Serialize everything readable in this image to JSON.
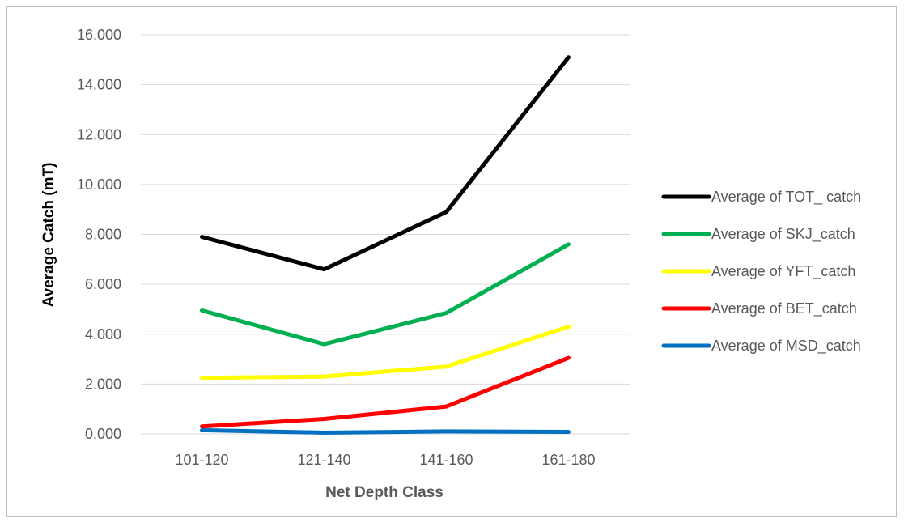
{
  "chart_data": {
    "type": "line",
    "xlabel": "Net Depth Class",
    "ylabel": "Average Catch (mT)",
    "categories": [
      "101-120",
      "121-140",
      "141-160",
      "161-180"
    ],
    "ylim": [
      0,
      16
    ],
    "yticks": [
      "0.000",
      "2.000",
      "4.000",
      "6.000",
      "8.000",
      "10.000",
      "12.000",
      "14.000",
      "16.000"
    ],
    "ytick_values": [
      0,
      2,
      4,
      6,
      8,
      10,
      12,
      14,
      16
    ],
    "grid": "horizontal",
    "legend_position": "right",
    "series": [
      {
        "name": "Average of TOT_ catch",
        "color": "#000000",
        "values": [
          7.9,
          6.6,
          8.9,
          15.1
        ]
      },
      {
        "name": "Average of SKJ_catch",
        "color": "#00b050",
        "values": [
          4.95,
          3.6,
          4.85,
          7.6
        ]
      },
      {
        "name": "Average of YFT_catch",
        "color": "#ffff00",
        "values": [
          2.25,
          2.3,
          2.7,
          4.3
        ]
      },
      {
        "name": "Average of BET_catch",
        "color": "#ff0000",
        "values": [
          0.3,
          0.6,
          1.1,
          3.05
        ]
      },
      {
        "name": "Average of MSD_catch",
        "color": "#0070c0",
        "values": [
          0.15,
          0.05,
          0.1,
          0.08
        ]
      }
    ]
  }
}
